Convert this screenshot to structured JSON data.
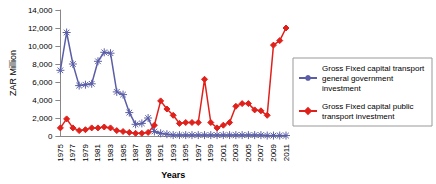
{
  "chart_data": {
    "type": "line",
    "x_label": "Years",
    "y_label": "ZAR Million",
    "categories": [
      "1975",
      null,
      "1977",
      null,
      "1979",
      null,
      "1981",
      null,
      "1983",
      null,
      "1985",
      null,
      "1987",
      null,
      "1989",
      null,
      "1991",
      null,
      "1993",
      null,
      "1995",
      null,
      "1997",
      null,
      "1999",
      null,
      "2001",
      null,
      "2003",
      null,
      "2005",
      null,
      "2007",
      null,
      "2009",
      null,
      "2011"
    ],
    "series": [
      {
        "name": "Gross Fixed capital transport general government investment",
        "color": "#5b5ea6",
        "marker": "asterisk",
        "values": [
          7300,
          11500,
          8000,
          5600,
          5700,
          5800,
          8300,
          9300,
          9200,
          4900,
          4600,
          2600,
          1300,
          1400,
          2000,
          500,
          300,
          200,
          100,
          100,
          100,
          100,
          100,
          100,
          100,
          100,
          100,
          100,
          100,
          100,
          100,
          100,
          100,
          50,
          50,
          50,
          50
        ]
      },
      {
        "name": "Gross Fixed capital public transport investment",
        "color": "#e0201b",
        "marker": "diamond",
        "values": [
          900,
          1900,
          900,
          600,
          700,
          900,
          900,
          1000,
          900,
          600,
          500,
          400,
          300,
          300,
          400,
          1200,
          3900,
          3000,
          2300,
          1400,
          1500,
          1500,
          1500,
          6300,
          1500,
          900,
          1200,
          1500,
          3300,
          3600,
          3600,
          2900,
          2800,
          2300,
          10100,
          10600,
          12000
        ]
      }
    ],
    "ylim": [
      0,
      14000
    ],
    "yticks": [
      0,
      2000,
      4000,
      6000,
      8000,
      10000,
      12000,
      14000
    ],
    "grid": false,
    "legend": "right"
  }
}
